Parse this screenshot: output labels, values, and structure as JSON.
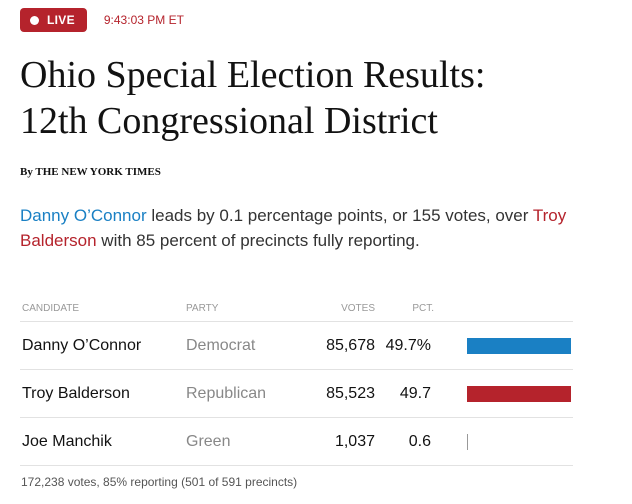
{
  "status": {
    "live_label": "LIVE",
    "timestamp": "9:43:03 PM ET"
  },
  "headline": {
    "line1": "Ohio Special Election Results:",
    "line2": "12th Congressional District"
  },
  "byline": {
    "by": "By",
    "source": "THE NEW YORK TIMES"
  },
  "summary": {
    "leader": "Danny O’Connor",
    "text_middle": " leads by 0.1 percentage points, or 155 votes, over ",
    "trailer": "Troy Balderson",
    "text_end": " with 85 percent of precincts fully reporting."
  },
  "table": {
    "headers": {
      "candidate": "CANDIDATE",
      "party": "PARTY",
      "votes": "VOTES",
      "pct": "PCT."
    },
    "rows": [
      {
        "name": "Danny O’Connor",
        "party": "Democrat",
        "votes": "85,678",
        "pct": "49.7%",
        "share": 0.497,
        "color": "#1a80c4"
      },
      {
        "name": "Troy Balderson",
        "party": "Republican",
        "votes": "85,523",
        "pct": "49.7",
        "share": 0.497,
        "color": "#b5232c"
      },
      {
        "name": "Joe Manchik",
        "party": "Green",
        "votes": "1,037",
        "pct": "0.6",
        "share": 0.006,
        "color": "#999999"
      }
    ],
    "footer": "172,238 votes, 85% reporting (501 of 591 precincts)"
  },
  "colors": {
    "live_red": "#b5232c",
    "democrat_blue": "#1a80c4",
    "republican_red": "#b5232c"
  }
}
